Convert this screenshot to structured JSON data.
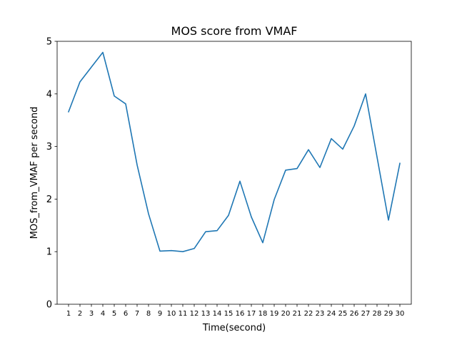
{
  "chart_data": {
    "type": "line",
    "title": "MOS score from VMAF",
    "xlabel": "Time(second)",
    "ylabel": "MOS_from_VMAF per second",
    "x": [
      1,
      2,
      3,
      4,
      5,
      6,
      7,
      8,
      9,
      10,
      11,
      12,
      13,
      14,
      15,
      16,
      17,
      18,
      19,
      20,
      21,
      22,
      23,
      24,
      25,
      26,
      27,
      28,
      29,
      30
    ],
    "xticks": [
      1,
      2,
      3,
      4,
      5,
      6,
      7,
      8,
      9,
      10,
      11,
      12,
      13,
      14,
      15,
      16,
      17,
      18,
      19,
      20,
      21,
      22,
      23,
      24,
      25,
      26,
      27,
      28,
      29,
      30
    ],
    "yticks": [
      0,
      1,
      2,
      3,
      4,
      5
    ],
    "xlim": [
      0,
      31
    ],
    "ylim": [
      0,
      5
    ],
    "grid": false,
    "series": [
      {
        "color": "#1f77b4",
        "values": [
          3.66,
          4.23,
          4.51,
          4.79,
          3.96,
          3.81,
          2.65,
          1.72,
          1.01,
          1.02,
          1.0,
          1.06,
          1.38,
          1.4,
          1.69,
          2.34,
          1.66,
          1.17,
          1.99,
          2.55,
          2.58,
          2.94,
          2.6,
          3.15,
          2.95,
          3.39,
          4.0,
          2.8,
          1.6,
          2.68
        ]
      }
    ]
  }
}
